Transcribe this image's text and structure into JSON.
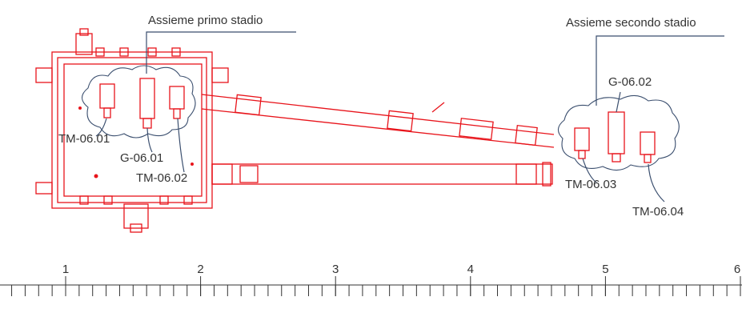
{
  "labels": {
    "assembly_first": "Assieme primo stadio",
    "assembly_second": "Assieme secondo stadio"
  },
  "components": {
    "g_06_02": "G-06.02",
    "tm_06_01": "TM-06.01",
    "g_06_01": "G-06.01",
    "tm_06_02": "TM-06.02",
    "tm_06_03": "TM-06.03",
    "tm_06_04": "TM-06.04"
  },
  "ruler": {
    "labels": [
      "1",
      "2",
      "3",
      "4",
      "5",
      "6"
    ]
  }
}
